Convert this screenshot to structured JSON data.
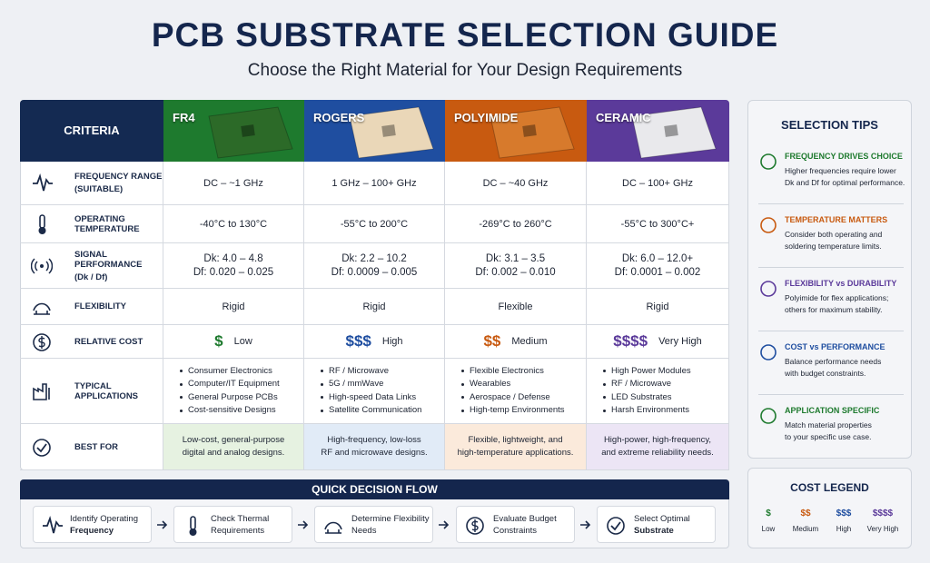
{
  "header": {
    "title": "PCB SUBSTRATE SELECTION GUIDE",
    "subtitle": "Choose the Right Material for Your Design Requirements"
  },
  "table": {
    "columns": [
      "CRITERIA",
      "FR4",
      "ROGERS",
      "POLYIMIDE",
      "CERAMIC"
    ],
    "rows": [
      {
        "label": "FREQUENCY RANGE",
        "sublabel": "(SUITABLE)",
        "cells": [
          {
            "lines": [
              "DC – ~1 GHz"
            ]
          },
          {
            "lines": [
              "1 GHz – 100+ GHz"
            ]
          },
          {
            "lines": [
              "DC – ~40 GHz"
            ]
          },
          {
            "lines": [
              "DC – 100+ GHz"
            ]
          }
        ]
      },
      {
        "label": "OPERATING TEMPERATURE",
        "cells": [
          {
            "lines": [
              "-40°C to 130°C"
            ]
          },
          {
            "lines": [
              "-55°C to 200°C"
            ]
          },
          {
            "lines": [
              "-269°C to 260°C"
            ]
          },
          {
            "lines": [
              "-55°C to 300°C+"
            ]
          }
        ]
      },
      {
        "label": "SIGNAL PERFORMANCE",
        "sublabel": "(Dk / Df)",
        "cells": [
          {
            "lines": [
              "Dk: 4.0 – 4.8",
              "Df: 0.020 – 0.025"
            ]
          },
          {
            "lines": [
              "Dk: 2.2 – 10.2",
              "Df: 0.0009 – 0.005"
            ]
          },
          {
            "lines": [
              "Dk: 3.1 – 3.5",
              "Df: 0.002 – 0.010"
            ]
          },
          {
            "lines": [
              "Dk: 6.0 – 12.0+",
              "Df: 0.0001 – 0.002"
            ]
          }
        ]
      },
      {
        "label": "FLEXIBILITY",
        "cells": [
          {
            "lines": [
              "Rigid"
            ]
          },
          {
            "lines": [
              "Rigid"
            ]
          },
          {
            "lines": [
              "Flexible"
            ]
          },
          {
            "lines": [
              "Rigid"
            ]
          }
        ]
      },
      {
        "label": "RELATIVE COST",
        "cells": [
          {
            "symbol": "$",
            "text": "Low"
          },
          {
            "symbol": "$$$",
            "text": "High"
          },
          {
            "symbol": "$$",
            "text": "Medium"
          },
          {
            "symbol": "$$$$",
            "text": "Very High"
          }
        ]
      },
      {
        "label": "TYPICAL APPLICATIONS",
        "cells": [
          {
            "bullets": [
              "Consumer Electronics",
              "Computer/IT Equipment",
              "General Purpose PCBs",
              "Cost-sensitive Designs"
            ]
          },
          {
            "bullets": [
              "RF / Microwave",
              "5G / mmWave",
              "High-speed Data Links",
              "Satellite Communication"
            ]
          },
          {
            "bullets": [
              "Flexible Electronics",
              "Wearables",
              "Aerospace / Defense",
              "High-temp Environments"
            ]
          },
          {
            "bullets": [
              "High Power Modules",
              "RF / Microwave",
              "LED Substrates",
              "Harsh Environments"
            ]
          }
        ]
      },
      {
        "label": "BEST FOR",
        "cells": [
          {
            "lines": [
              "Low-cost, general-purpose",
              "digital and analog designs."
            ]
          },
          {
            "lines": [
              "High-frequency, low-loss",
              "RF and microwave designs."
            ]
          },
          {
            "lines": [
              "Flexible, lightweight, and",
              "high-temperature applications."
            ]
          },
          {
            "lines": [
              "High-power, high-frequency,",
              "and extreme reliability needs."
            ]
          }
        ]
      }
    ]
  },
  "tips": {
    "title": "SELECTION TIPS",
    "items": [
      {
        "heading": "FREQUENCY DRIVES CHOICE",
        "text": [
          "Higher frequencies require lower",
          "Dk and Df for optimal performance."
        ]
      },
      {
        "heading": "TEMPERATURE MATTERS",
        "text": [
          "Consider both operating and",
          "soldering temperature limits."
        ]
      },
      {
        "heading": "FLEXIBILITY vs DURABILITY",
        "text": [
          "Polyimide for flex applications;",
          "others for maximum stability."
        ]
      },
      {
        "heading": "COST vs PERFORMANCE",
        "text": [
          "Balance performance needs",
          "with budget constraints."
        ]
      },
      {
        "heading": "APPLICATION SPECIFIC",
        "text": [
          "Match material properties",
          "to your specific use case."
        ]
      }
    ]
  },
  "legend": {
    "title": "COST LEGEND",
    "items": [
      {
        "symbol": "$",
        "label": "Low"
      },
      {
        "symbol": "$$",
        "label": "Medium"
      },
      {
        "symbol": "$$$",
        "label": "High"
      },
      {
        "symbol": "$$$$",
        "label": "Very High"
      }
    ]
  },
  "flow": {
    "title": "QUICK DECISION FLOW",
    "steps": [
      [
        "Identify Operating",
        "Frequency"
      ],
      [
        "Check Thermal",
        "Requirements"
      ],
      [
        "Determine Flexibility",
        "Needs"
      ],
      [
        "Evaluate Budget",
        "Constraints"
      ],
      [
        "Select Optimal",
        "Substrate"
      ]
    ]
  }
}
